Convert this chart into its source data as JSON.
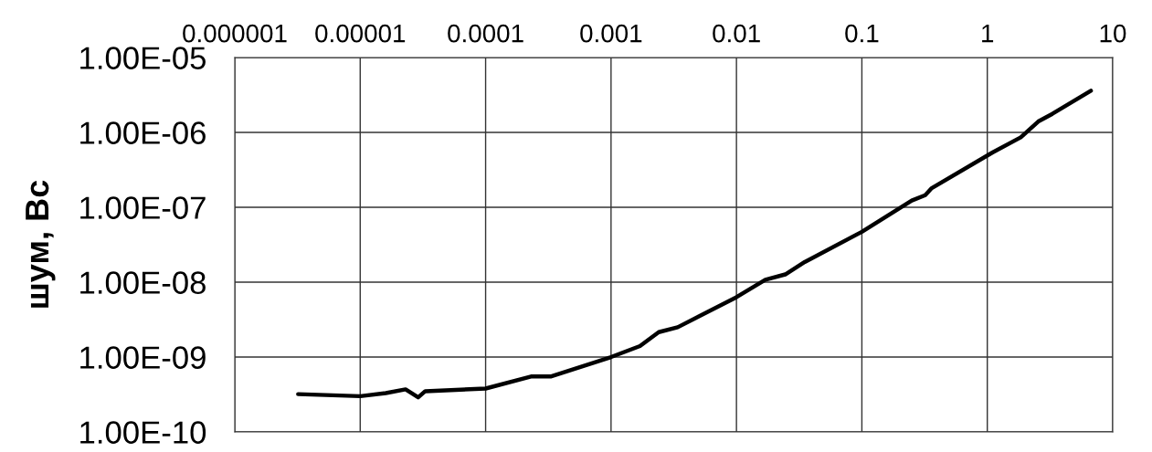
{
  "chart_data": {
    "type": "line",
    "ylabel": "шум, Вс",
    "log": "xy",
    "grid": true,
    "line_style": "solid",
    "marker": "none",
    "xlim": [
      1e-06,
      10
    ],
    "xticks": [
      {
        "value": 1e-06,
        "label": "0.000001"
      },
      {
        "value": 1e-05,
        "label": "0.00001"
      },
      {
        "value": 0.0001,
        "label": "0.0001"
      },
      {
        "value": 0.001,
        "label": "0.001"
      },
      {
        "value": 0.01,
        "label": "0.01"
      },
      {
        "value": 0.1,
        "label": "0.1"
      },
      {
        "value": 1,
        "label": "1"
      },
      {
        "value": 10,
        "label": "10"
      }
    ],
    "ylim": [
      1e-10,
      1e-05
    ],
    "yticks": [
      {
        "value": 1e-10,
        "label": "1.00E-10"
      },
      {
        "value": 1e-09,
        "label": "1.00E-09"
      },
      {
        "value": 1e-08,
        "label": "1.00E-08"
      },
      {
        "value": 1e-07,
        "label": "1.00E-07"
      },
      {
        "value": 1e-06,
        "label": "1.00E-06"
      },
      {
        "value": 1e-05,
        "label": "1.00E-05"
      }
    ],
    "series": [
      {
        "color": "#000000",
        "x": [
          3.2e-06,
          1e-05,
          1.6e-05,
          2.3e-05,
          2.9e-05,
          3.3e-05,
          0.0001,
          0.00023,
          0.00033,
          0.001,
          0.0017,
          0.0024,
          0.0034,
          0.01,
          0.017,
          0.0245,
          0.035,
          0.1,
          0.25,
          0.32,
          0.36,
          1.1,
          1.85,
          2.55,
          3.3,
          6.7
        ],
        "values": [
          3.2e-10,
          3e-10,
          3.3e-10,
          3.7e-10,
          2.9e-10,
          3.5e-10,
          3.8e-10,
          5.5e-10,
          5.5e-10,
          1e-09,
          1.4e-09,
          2.15e-09,
          2.5e-09,
          6.3e-09,
          1.08e-08,
          1.27e-08,
          1.86e-08,
          4.7e-08,
          1.23e-07,
          1.45e-07,
          1.8e-07,
          5.4e-07,
          8.6e-07,
          1.4e-06,
          1.77e-06,
          3.6e-06
        ]
      }
    ]
  }
}
